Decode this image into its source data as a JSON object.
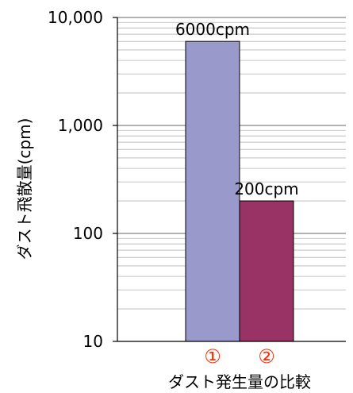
{
  "chart_data": {
    "type": "bar",
    "ylabel": "ダスト飛散量(cpm)",
    "xlabel": "ダスト発生量の比較",
    "y_scale": "log",
    "ylim": [
      10,
      10000
    ],
    "y_ticks": [
      {
        "value": 10000,
        "label": "10,000"
      },
      {
        "value": 1000,
        "label": "1,000"
      },
      {
        "value": 100,
        "label": "100"
      },
      {
        "value": 10,
        "label": "10"
      }
    ],
    "categories": [
      "①",
      "②"
    ],
    "values": [
      6000,
      200
    ],
    "data_labels": [
      "6000cpm",
      "200cpm"
    ],
    "colors": [
      "#9999cc",
      "#993366"
    ],
    "category_label_color": "#ff2a00",
    "grid": true
  }
}
